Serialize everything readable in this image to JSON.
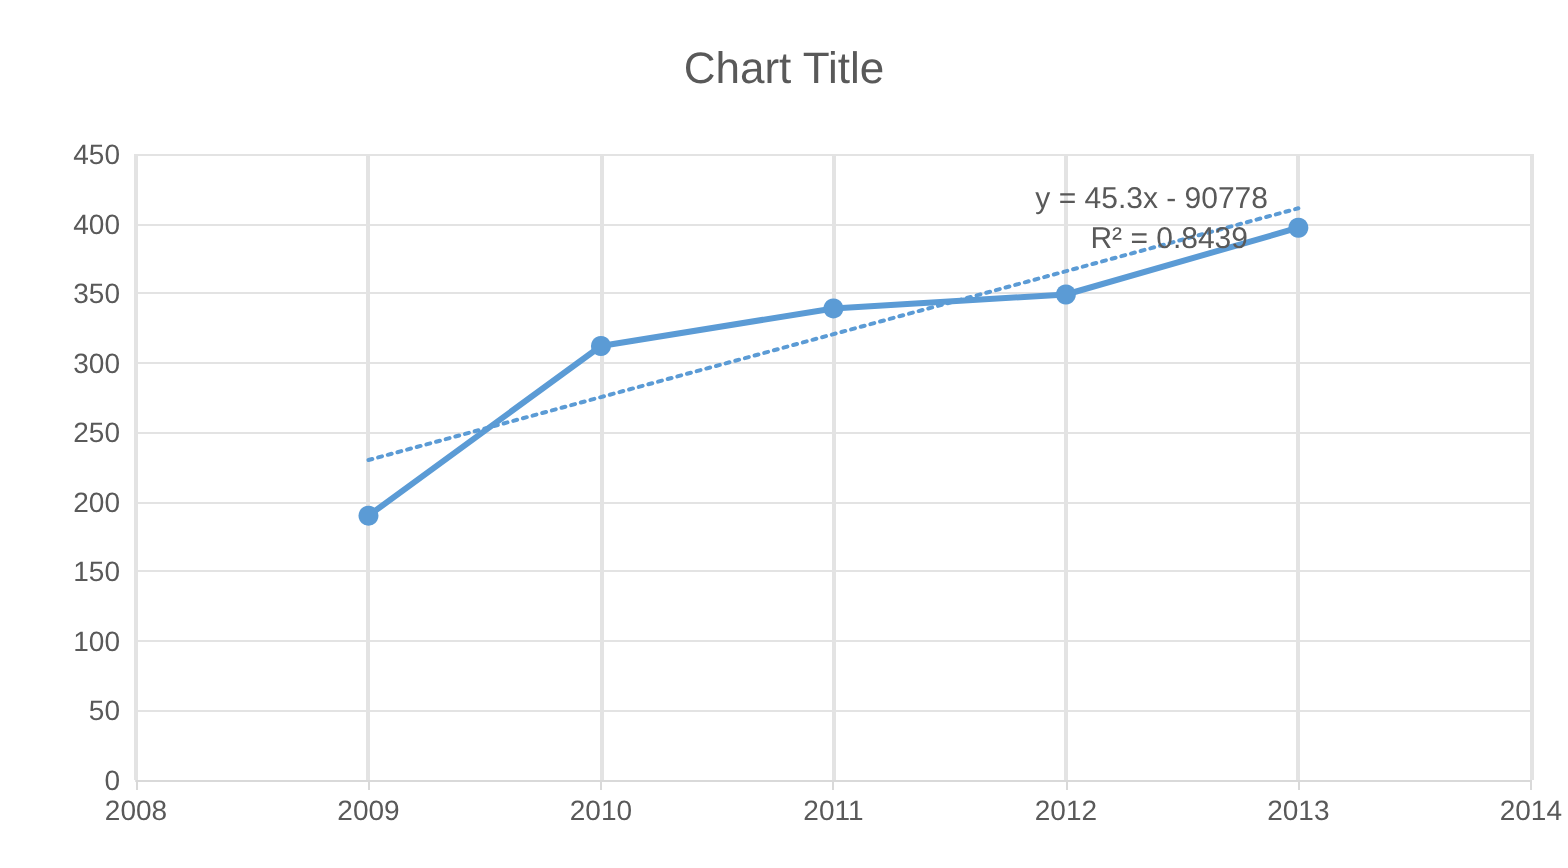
{
  "chart_data": {
    "type": "line",
    "title": "Chart Title",
    "x": [
      2009,
      2010,
      2011,
      2012,
      2013
    ],
    "series": [
      {
        "color": "#5b9bd5",
        "values": [
          190,
          312,
          339,
          349,
          397
        ],
        "marker": "circle",
        "line_style": "solid"
      },
      {
        "type": "line",
        "color": "#5b9bd5",
        "x": [
          2009,
          2013
        ],
        "values": [
          230,
          411
        ],
        "marker": "none",
        "line_style": "dotted"
      }
    ],
    "xlim": [
      2008,
      2014
    ],
    "xticks": [
      2008,
      2009,
      2010,
      2011,
      2012,
      2013,
      2014
    ],
    "ylim": [
      0,
      450
    ],
    "yticks": [
      0,
      50,
      100,
      150,
      200,
      250,
      300,
      350,
      400,
      450
    ],
    "grid": true,
    "annotations": [
      "y = 45.3x - 90778",
      "R² = 0.8439"
    ]
  }
}
